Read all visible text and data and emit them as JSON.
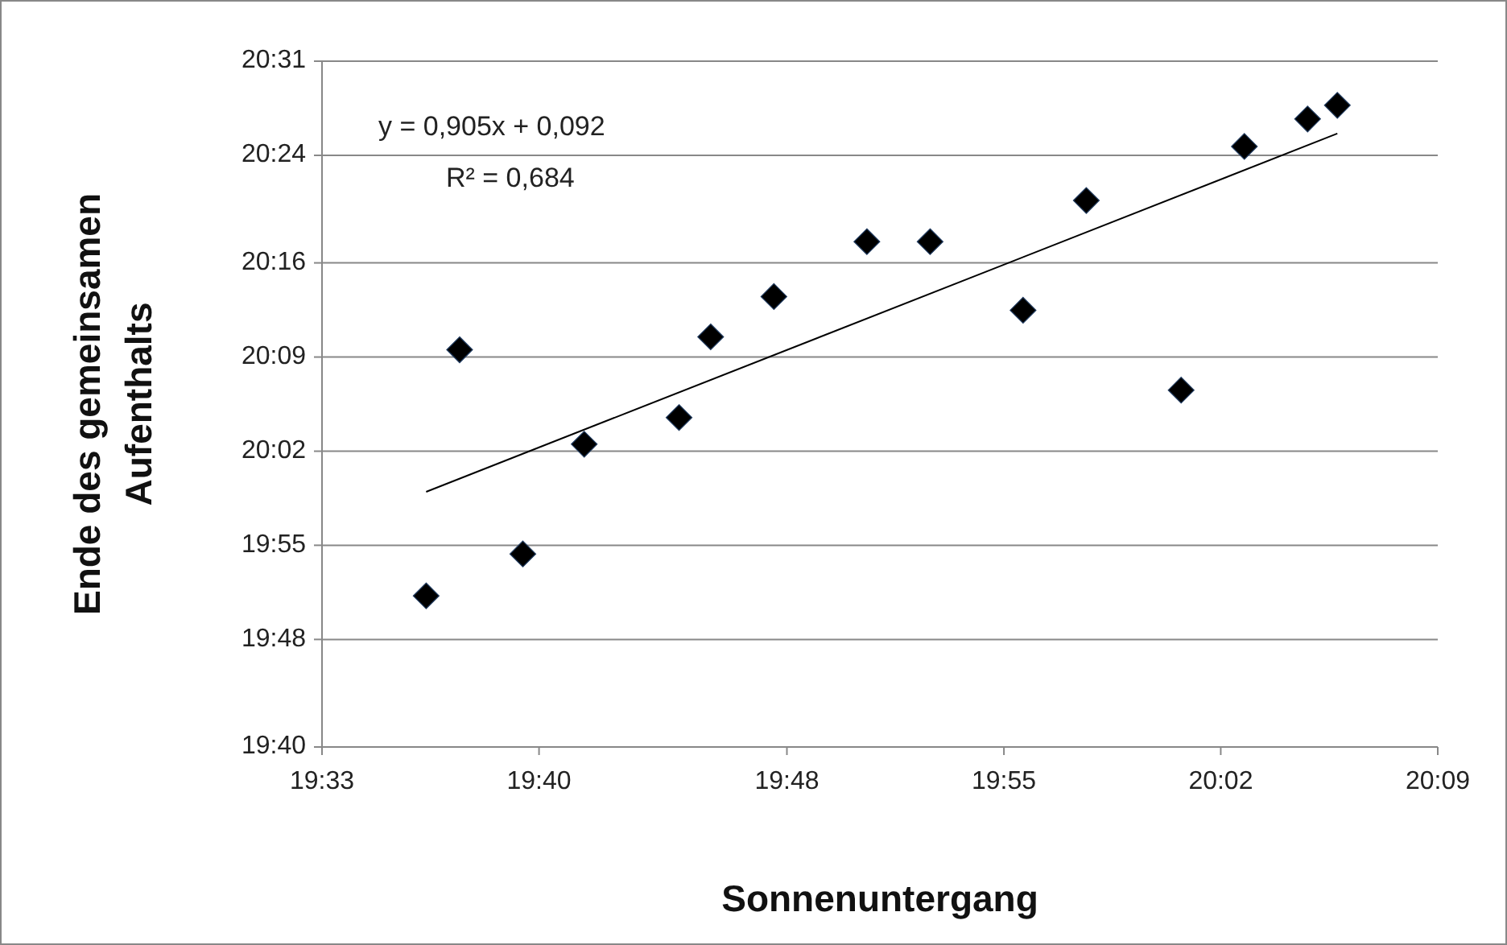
{
  "chart_data": {
    "type": "scatter",
    "xlabel": "Sonnenuntergang",
    "ylabel": "Ende des gemeinsamen Aufenthalts",
    "xlim": [
      19.55,
      20.15
    ],
    "xticks": [
      {
        "value": 19.55,
        "label": "19:33"
      },
      {
        "value": 19.6667,
        "label": "19:40"
      },
      {
        "value": 19.8,
        "label": "19:48"
      },
      {
        "value": 19.9167,
        "label": "19:55"
      },
      {
        "value": 20.0333,
        "label": "20:02"
      },
      {
        "value": 20.15,
        "label": "20:09"
      }
    ],
    "ylim": [
      19.6667,
      20.5167
    ],
    "yticks": [
      {
        "value": 19.6667,
        "label": "19:40"
      },
      {
        "value": 19.8,
        "label": "19:48"
      },
      {
        "value": 19.9167,
        "label": "19:55"
      },
      {
        "value": 20.0333,
        "label": "20:02"
      },
      {
        "value": 20.15,
        "label": "20:09"
      },
      {
        "value": 20.2667,
        "label": "20:16"
      },
      {
        "value": 20.4,
        "label": "20:24"
      },
      {
        "value": 20.5167,
        "label": "20:31"
      }
    ],
    "grid": "y",
    "marker": "diamond",
    "series": [
      {
        "color": "#000000",
        "x": [
          19.606,
          19.624,
          19.658,
          19.691,
          19.742,
          19.759,
          19.793,
          19.843,
          19.877,
          19.927,
          19.961,
          20.012,
          20.046,
          20.08,
          20.096
        ],
        "values": [
          19.854,
          20.159,
          19.906,
          20.042,
          20.075,
          20.175,
          20.225,
          20.293,
          20.293,
          20.208,
          20.344,
          20.109,
          20.411,
          20.445,
          20.462
        ]
      },
      {
        "type": "line",
        "color": "#000000",
        "marker": "none",
        "line_style": "solid",
        "x": [
          19.606,
          20.096
        ],
        "values": [
          19.983,
          20.427
        ]
      }
    ],
    "annotations": [
      "y = 0,905x + 0,092",
      "R² = 0,684"
    ]
  }
}
